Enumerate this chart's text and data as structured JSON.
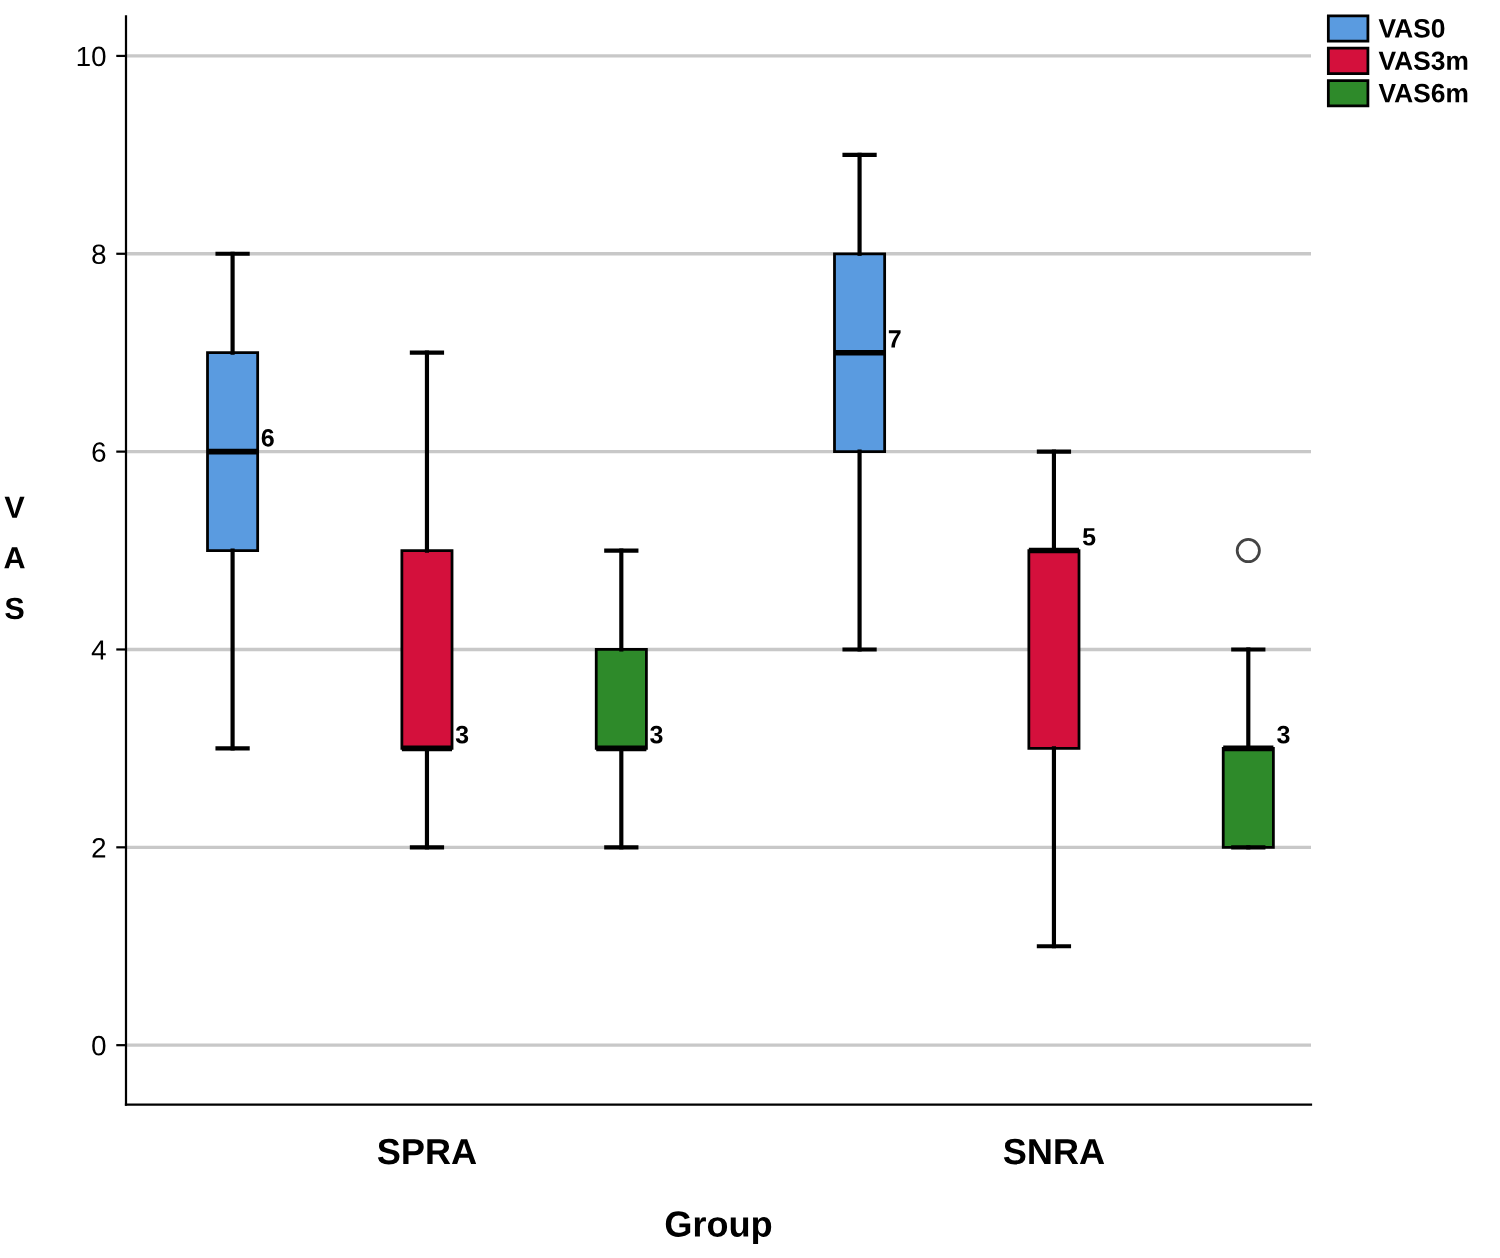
{
  "chart_data": {
    "type": "box",
    "xlabel": "Group",
    "ylabel": "VAS",
    "categories": [
      "SPRA",
      "SNRA"
    ],
    "series": [
      {
        "name": "VAS0",
        "color": "#5a9be0",
        "boxes": [
          {
            "low": 3,
            "q1": 5,
            "median": 6,
            "q3": 7,
            "high": 8
          },
          {
            "low": 4,
            "q1": 6,
            "median": 7,
            "q3": 8,
            "high": 9
          }
        ],
        "value_labels": [
          "6",
          "7"
        ]
      },
      {
        "name": "VAS3m",
        "color": "#d4103c",
        "boxes": [
          {
            "low": 2,
            "q1": 3,
            "median": 3,
            "q3": 5,
            "high": 7
          },
          {
            "low": 1,
            "q1": 3,
            "median": 5,
            "q3": 5,
            "high": 6
          }
        ],
        "value_labels": [
          "3",
          "5"
        ]
      },
      {
        "name": "VAS6m",
        "color": "#2e8a2a",
        "boxes": [
          {
            "low": 2,
            "q1": 3,
            "median": 3,
            "q3": 4,
            "high": 5
          },
          {
            "low": 2,
            "q1": 2,
            "median": 3,
            "q3": 3,
            "high": 4,
            "outliers": [
              5
            ]
          }
        ],
        "value_labels": [
          "3",
          "3"
        ]
      }
    ],
    "ylim": [
      -0.6,
      10.4
    ],
    "yticks": [
      0,
      2,
      4,
      6,
      8,
      10
    ],
    "grid": "y",
    "legend": "top right"
  }
}
